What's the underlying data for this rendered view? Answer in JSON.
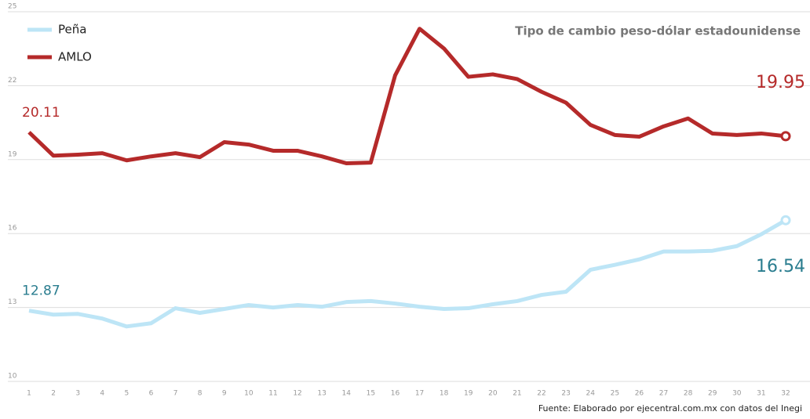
{
  "chart_data": {
    "type": "line",
    "title": "Tipo de cambio peso-dólar estadounidense",
    "source": "Fuente: Elaborado por ejecentral.com.mx con datos del Inegi",
    "x": [
      1,
      2,
      3,
      4,
      5,
      6,
      7,
      8,
      9,
      10,
      11,
      12,
      13,
      14,
      15,
      16,
      17,
      18,
      19,
      20,
      21,
      22,
      23,
      24,
      25,
      26,
      27,
      28,
      29,
      30,
      31,
      32
    ],
    "xlim": [
      1,
      32
    ],
    "series": [
      {
        "name": "Peña",
        "color": "#bde5f6",
        "label_color": "#2a7d8f",
        "values": [
          12.87,
          12.71,
          12.74,
          12.55,
          12.23,
          12.36,
          12.97,
          12.78,
          12.94,
          13.1,
          13.0,
          13.1,
          13.03,
          13.22,
          13.26,
          13.16,
          13.03,
          12.94,
          12.97,
          13.13,
          13.26,
          13.51,
          13.64,
          14.53,
          14.73,
          14.95,
          15.27,
          15.27,
          15.3,
          15.49,
          15.97,
          16.54
        ]
      },
      {
        "name": "AMLO",
        "color": "#b52a2a",
        "label_color": "#b52a2a",
        "values": [
          20.11,
          19.16,
          19.2,
          19.26,
          18.97,
          19.13,
          19.26,
          19.1,
          19.71,
          19.61,
          19.36,
          19.36,
          19.13,
          18.85,
          18.88,
          22.42,
          24.31,
          23.51,
          22.36,
          22.46,
          22.27,
          21.75,
          21.31,
          20.41,
          20.0,
          19.93,
          20.35,
          20.67,
          20.06,
          20.0,
          20.06,
          19.95
        ]
      }
    ],
    "ylim": [
      10,
      25
    ],
    "yticks": [
      10,
      13,
      16,
      19,
      22,
      25
    ],
    "grid": true
  }
}
